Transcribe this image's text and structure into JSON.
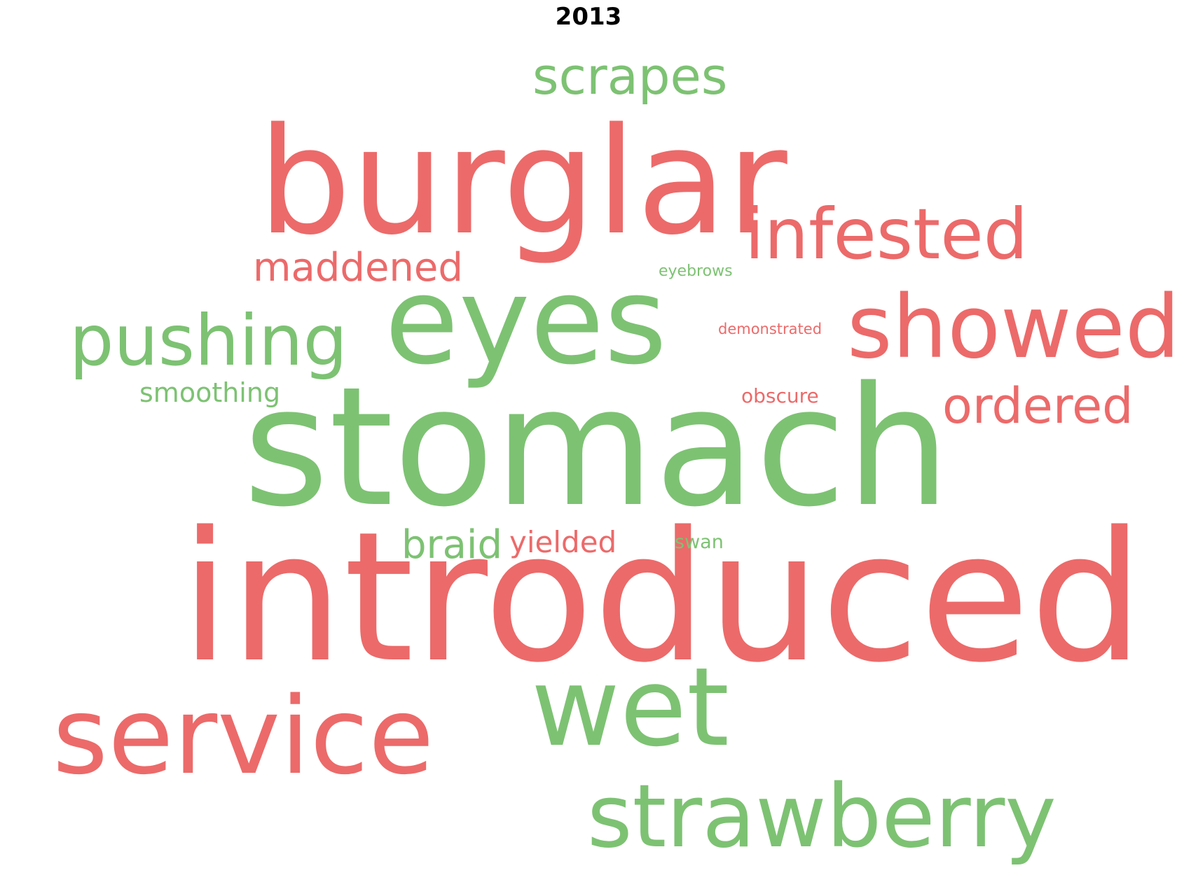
{
  "title": "2013",
  "colors": {
    "positive": "#7dc273",
    "negative": "#ec6a6a",
    "title": "#000000",
    "background": "#ffffff"
  },
  "words": [
    {
      "text": "introduced",
      "sentiment": "negative"
    },
    {
      "text": "stomach",
      "sentiment": "positive"
    },
    {
      "text": "burglar",
      "sentiment": "negative"
    },
    {
      "text": "eyes",
      "sentiment": "positive"
    },
    {
      "text": "wet",
      "sentiment": "positive"
    },
    {
      "text": "service",
      "sentiment": "negative"
    },
    {
      "text": "showed",
      "sentiment": "negative"
    },
    {
      "text": "strawberry",
      "sentiment": "positive"
    },
    {
      "text": "infested",
      "sentiment": "negative"
    },
    {
      "text": "pushing",
      "sentiment": "positive"
    },
    {
      "text": "scrapes",
      "sentiment": "positive"
    },
    {
      "text": "ordered",
      "sentiment": "negative"
    },
    {
      "text": "maddened",
      "sentiment": "negative"
    },
    {
      "text": "braid",
      "sentiment": "positive"
    },
    {
      "text": "yielded",
      "sentiment": "negative"
    },
    {
      "text": "smoothing",
      "sentiment": "positive"
    },
    {
      "text": "obscure",
      "sentiment": "negative"
    },
    {
      "text": "swan",
      "sentiment": "positive"
    },
    {
      "text": "eyebrows",
      "sentiment": "positive"
    },
    {
      "text": "demonstrated",
      "sentiment": "negative"
    }
  ]
}
